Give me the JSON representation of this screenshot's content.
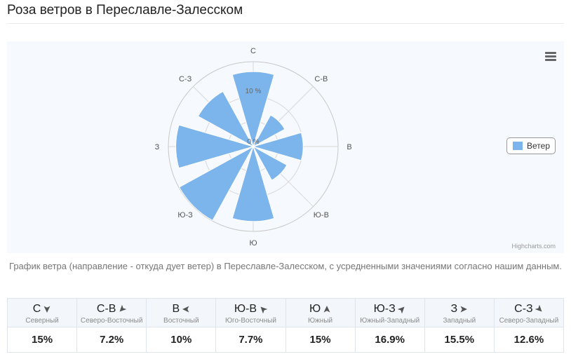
{
  "page": {
    "title": "Роза ветров в Переславле-Залесском",
    "caption": "График ветра (направление - откуда дует ветер) в Переславле-Залесском, с усредненными значениями согласно нашим данным.",
    "credits": "Highcharts.com"
  },
  "chart_data": {
    "type": "polar-column",
    "title": "",
    "categories": [
      "С",
      "С-В",
      "В",
      "Ю-В",
      "Ю",
      "Ю-З",
      "З",
      "С-З"
    ],
    "series": [
      {
        "name": "Ветер",
        "color": "#7cb5ec",
        "values": [
          15,
          7.2,
          10,
          7.7,
          15,
          16.9,
          15.5,
          12.6
        ]
      }
    ],
    "y_tick_labels": [
      "0 %",
      "10 %"
    ],
    "y_ticks": [
      0,
      5,
      10
    ],
    "y_max": 17,
    "legend_position": "right",
    "grid": true,
    "background": "#f6f9fd",
    "grid_color": "#d8d8d8"
  },
  "table": {
    "rows": [
      {
        "abbr": "С",
        "name": "Северный",
        "value": "15%",
        "arrow_rotation": 180
      },
      {
        "abbr": "С-В",
        "name": "Северо-Восточный",
        "value": "7.2%",
        "arrow_rotation": 225
      },
      {
        "abbr": "В",
        "name": "Восточный",
        "value": "10%",
        "arrow_rotation": 270
      },
      {
        "abbr": "Ю-В",
        "name": "Юго-Восточный",
        "value": "7.7%",
        "arrow_rotation": 315
      },
      {
        "abbr": "Ю",
        "name": "Южный",
        "value": "15%",
        "arrow_rotation": 0
      },
      {
        "abbr": "Ю-З",
        "name": "Южный-Западный",
        "value": "16.9%",
        "arrow_rotation": 45
      },
      {
        "abbr": "З",
        "name": "Западный",
        "value": "15.5%",
        "arrow_rotation": 90
      },
      {
        "abbr": "С-З",
        "name": "Северо-Западный",
        "value": "12.6%",
        "arrow_rotation": 135
      }
    ]
  },
  "icons": {
    "menu": "hamburger-menu-icon",
    "arrow": "triangle-arrow-icon"
  }
}
